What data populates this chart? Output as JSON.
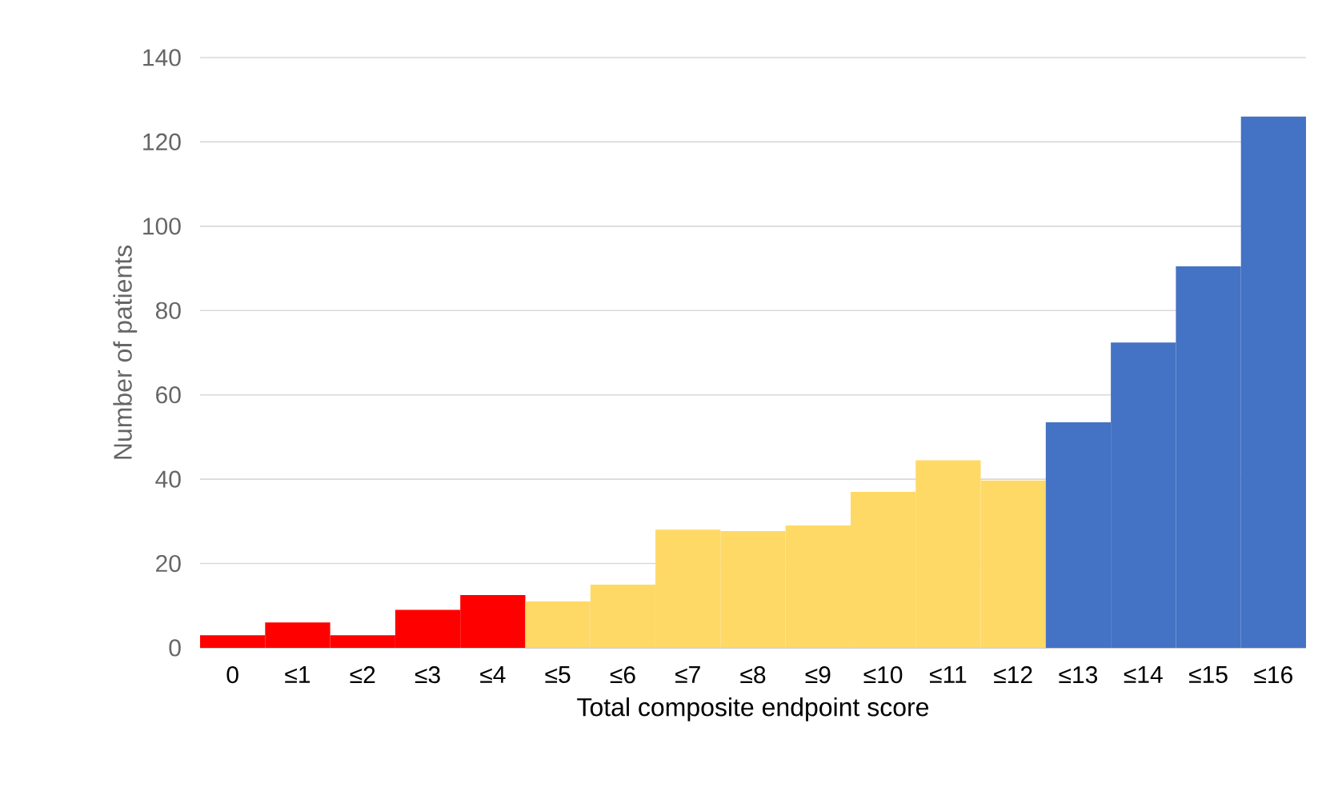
{
  "chart_data": {
    "type": "bar",
    "xlabel": "Total composite endpoint score",
    "ylabel": "Number of patients",
    "categories": [
      "0",
      "≤1",
      "≤2",
      "≤3",
      "≤4",
      "≤5",
      "≤6",
      "≤7",
      "≤8",
      "≤9",
      "≤10",
      "≤11",
      "≤12",
      "≤13",
      "≤14",
      "≤15",
      "≤16"
    ],
    "values": [
      3,
      6,
      3,
      9,
      12.5,
      11,
      15,
      28,
      27.7,
      29,
      37,
      44.5,
      39.7,
      53.5,
      72.4,
      90.5,
      126
    ],
    "colors": [
      "#ff0000",
      "#ff0000",
      "#ff0000",
      "#ff0000",
      "#ff0000",
      "#ffd966",
      "#ffd966",
      "#ffd966",
      "#ffd966",
      "#ffd966",
      "#ffd966",
      "#ffd966",
      "#ffd966",
      "#4472c4",
      "#4472c4",
      "#4472c4",
      "#4472c4"
    ],
    "ylim": [
      0,
      140
    ],
    "yticks": [
      0,
      20,
      40,
      60,
      80,
      100,
      120,
      140
    ],
    "grid": "y"
  }
}
